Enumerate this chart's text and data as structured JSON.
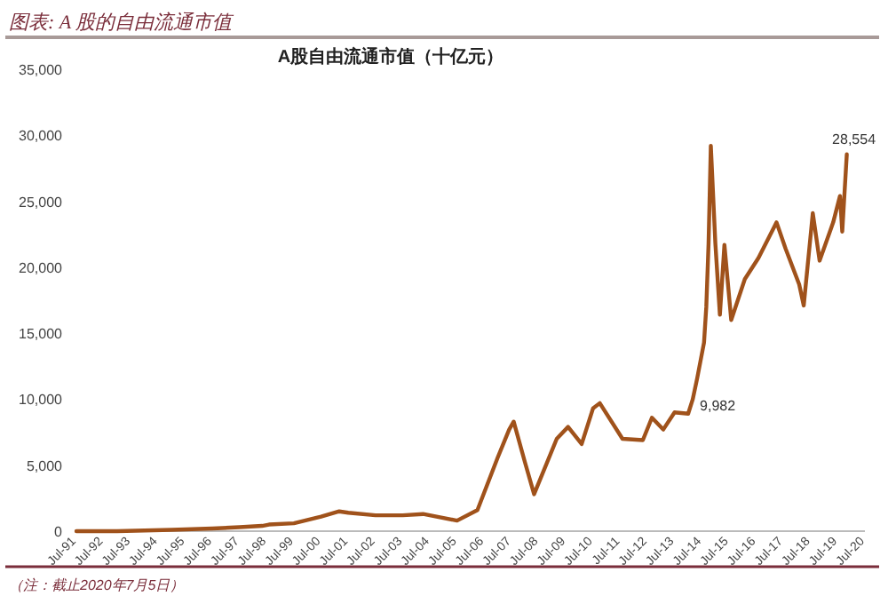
{
  "chart_data": {
    "type": "line",
    "subtitle": "图表: A 股的自由流通市值",
    "title": "A股自由流通市值（十亿元）",
    "annotations": [
      {
        "text": "9,982",
        "x": "2014-03",
        "y": 9982
      },
      {
        "text": "28,554",
        "x": "2019-11",
        "y": 28554
      },
      "（注：截止2020年7月5日）"
    ],
    "series": [
      {
        "color": "#a0521b",
        "x": [
          "1991-07",
          "1993-01",
          "1995-01",
          "1996-07",
          "1997-07",
          "1998-05",
          "1998-08",
          "1999-07",
          "2000-07",
          "2001-03",
          "2001-07",
          "2002-07",
          "2003-07",
          "2004-04",
          "2005-07",
          "2006-04",
          "2007-01",
          "2007-06",
          "2007-08",
          "2008-01",
          "2008-05",
          "2009-03",
          "2009-08",
          "2010-02",
          "2010-07",
          "2010-10",
          "2011-08",
          "2012-05",
          "2012-09",
          "2013-02",
          "2013-07",
          "2014-01",
          "2014-03",
          "2014-05",
          "2014-08",
          "2014-09",
          "2014-10",
          "2014-11",
          "2015-01",
          "2015-03",
          "2015-05",
          "2015-08",
          "2016-02",
          "2016-08",
          "2017-04",
          "2017-08",
          "2018-02",
          "2018-04",
          "2018-08",
          "2018-11",
          "2019-05",
          "2019-08",
          "2019-09",
          "2019-11"
        ],
        "values": [
          0,
          0,
          100,
          200,
          300,
          400,
          500,
          600,
          1100,
          1500,
          1400,
          1200,
          1200,
          1300,
          800,
          1600,
          5600,
          7700,
          8300,
          5200,
          2800,
          7000,
          7900,
          6600,
          9300,
          9700,
          7000,
          6900,
          8600,
          7700,
          9000,
          8900,
          9982,
          11600,
          14300,
          17000,
          21800,
          29200,
          21800,
          16400,
          21700,
          16000,
          19100,
          20700,
          23400,
          21400,
          18700,
          17100,
          24100,
          20500,
          23400,
          25400,
          22700,
          28554
        ]
      }
    ],
    "xlim": [
      "1991-07",
      "2020-07"
    ],
    "xticks": [
      {
        "value": "1991-07",
        "label": "Jul-91"
      },
      {
        "value": "1992-07",
        "label": "Jul-92"
      },
      {
        "value": "1993-07",
        "label": "Jul-93"
      },
      {
        "value": "1994-07",
        "label": "Jul-94"
      },
      {
        "value": "1995-07",
        "label": "Jul-95"
      },
      {
        "value": "1996-07",
        "label": "Jul-96"
      },
      {
        "value": "1997-07",
        "label": "Jul-97"
      },
      {
        "value": "1998-07",
        "label": "Jul-98"
      },
      {
        "value": "1999-07",
        "label": "Jul-99"
      },
      {
        "value": "2000-07",
        "label": "Jul-00"
      },
      {
        "value": "2001-07",
        "label": "Jul-01"
      },
      {
        "value": "2002-07",
        "label": "Jul-02"
      },
      {
        "value": "2003-07",
        "label": "Jul-03"
      },
      {
        "value": "2004-07",
        "label": "Jul-04"
      },
      {
        "value": "2005-07",
        "label": "Jul-05"
      },
      {
        "value": "2006-07",
        "label": "Jul-06"
      },
      {
        "value": "2007-07",
        "label": "Jul-07"
      },
      {
        "value": "2008-07",
        "label": "Jul-08"
      },
      {
        "value": "2009-07",
        "label": "Jul-09"
      },
      {
        "value": "2010-07",
        "label": "Jul-10"
      },
      {
        "value": "2011-07",
        "label": "Jul-11"
      },
      {
        "value": "2012-07",
        "label": "Jul-12"
      },
      {
        "value": "2013-07",
        "label": "Jul-13"
      },
      {
        "value": "2014-07",
        "label": "Jul-14"
      },
      {
        "value": "2015-07",
        "label": "Jul-15"
      },
      {
        "value": "2016-07",
        "label": "Jul-16"
      },
      {
        "value": "2017-07",
        "label": "Jul-17"
      },
      {
        "value": "2018-07",
        "label": "Jul-18"
      },
      {
        "value": "2019-07",
        "label": "Jul-19"
      },
      {
        "value": "2020-07",
        "label": "Jul-20"
      }
    ],
    "ylim": [
      0,
      35000
    ],
    "yticks": [
      {
        "value": 0,
        "label": "0"
      },
      {
        "value": 5000,
        "label": "5,000"
      },
      {
        "value": 10000,
        "label": "10,000"
      },
      {
        "value": 15000,
        "label": "15,000"
      },
      {
        "value": 20000,
        "label": "20,000"
      },
      {
        "value": 25000,
        "label": "25,000"
      },
      {
        "value": 30000,
        "label": "30,000"
      },
      {
        "value": 35000,
        "label": "35,000"
      }
    ],
    "marker": "none",
    "line_style": "solid"
  }
}
